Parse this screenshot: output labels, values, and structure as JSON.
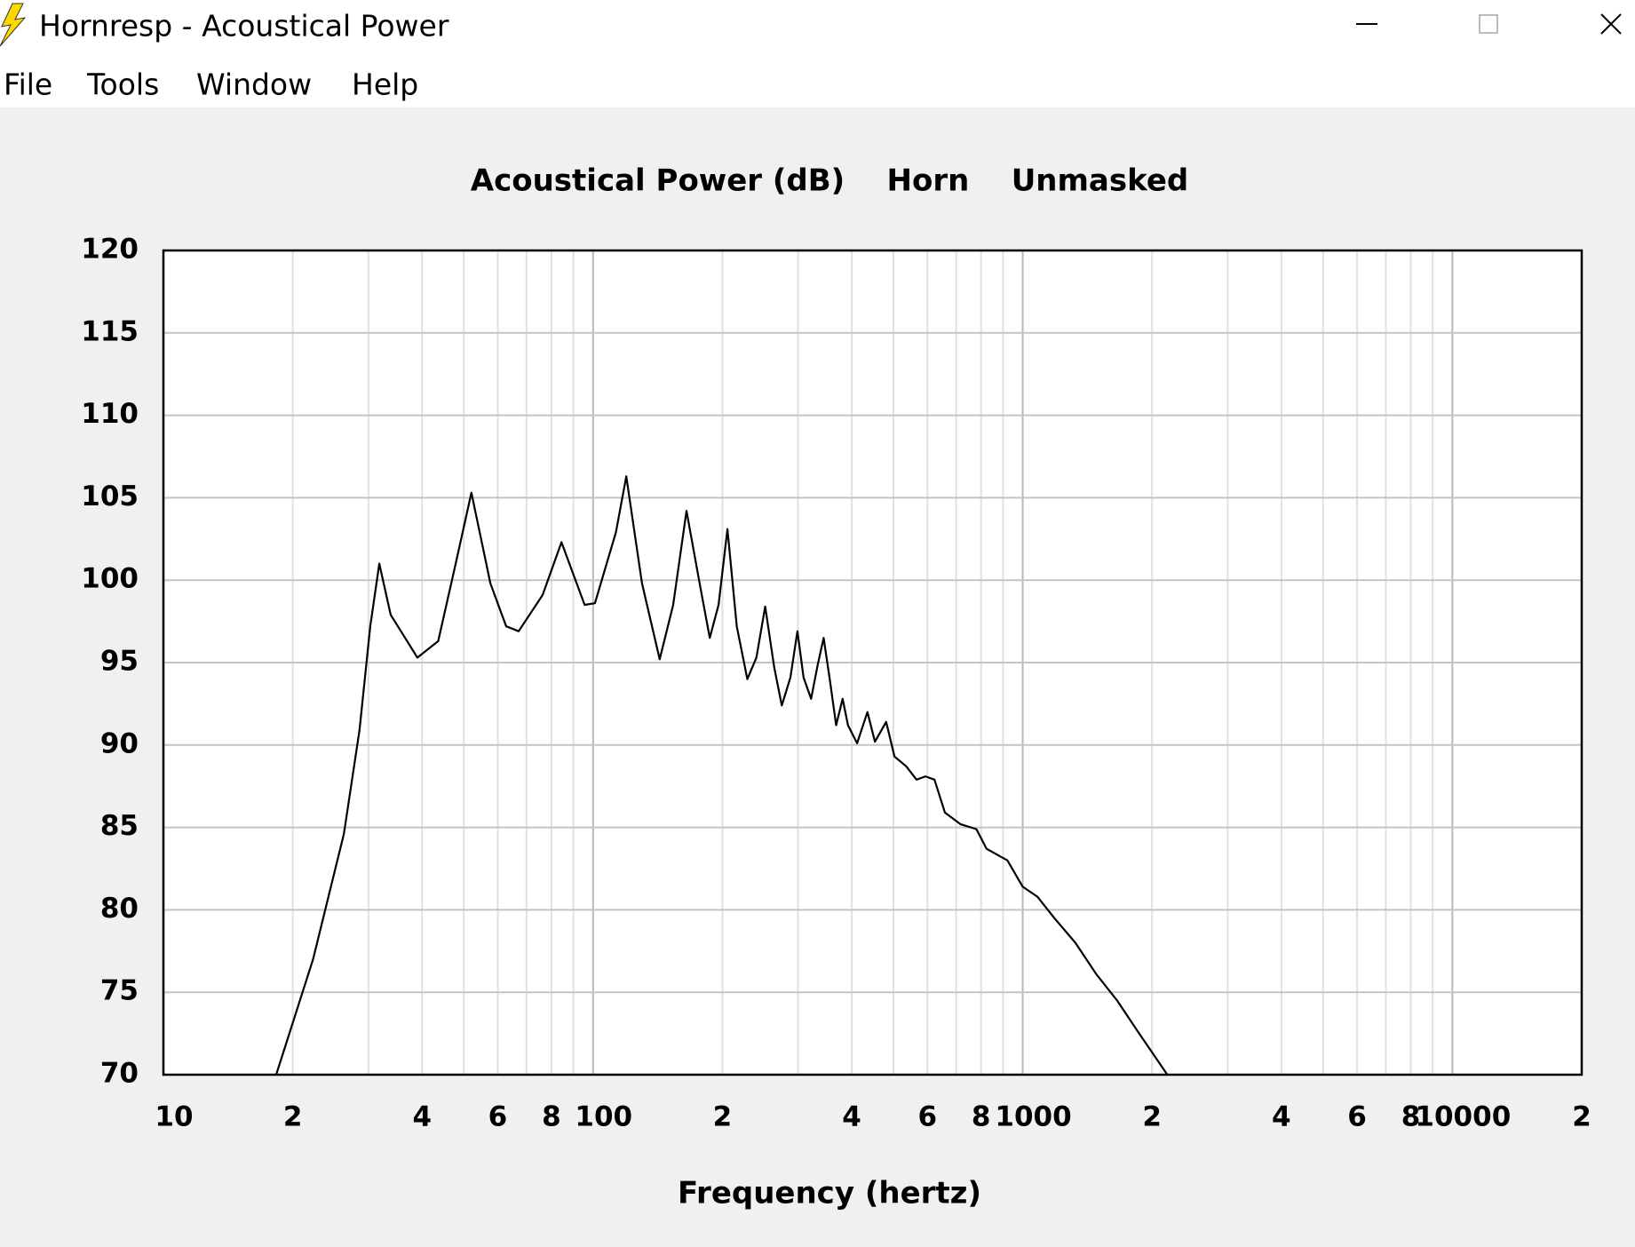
{
  "window": {
    "title": "Hornresp - Acoustical Power",
    "menu": [
      "File",
      "Tools",
      "Window",
      "Help"
    ]
  },
  "chart_data": {
    "type": "line",
    "title": "Acoustical Power (dB)    Horn    Unmasked",
    "x_label": "Frequency (hertz)",
    "log_x": true,
    "color": "#000000",
    "grid": true,
    "xlim": [
      10,
      20000
    ],
    "ylim": [
      70,
      120
    ],
    "xticks": [
      10,
      {
        "value": 20,
        "label": "2"
      },
      {
        "value": 40,
        "label": "4"
      },
      {
        "value": 60,
        "label": "6"
      },
      {
        "value": 80,
        "label": "8"
      },
      100,
      {
        "value": 200,
        "label": "2"
      },
      {
        "value": 400,
        "label": "4"
      },
      {
        "value": 600,
        "label": "6"
      },
      {
        "value": 800,
        "label": "8"
      },
      1000,
      {
        "value": 2000,
        "label": "2"
      },
      {
        "value": 4000,
        "label": "4"
      },
      {
        "value": 6000,
        "label": "6"
      },
      {
        "value": 8000,
        "label": "8"
      },
      10000,
      {
        "value": 20000,
        "label": "2"
      }
    ],
    "xgrid": [
      20,
      30,
      40,
      50,
      60,
      70,
      80,
      90,
      100,
      200,
      300,
      400,
      500,
      600,
      700,
      800,
      900,
      1000,
      2000,
      3000,
      4000,
      5000,
      6000,
      7000,
      8000,
      9000,
      10000
    ],
    "xgrid_major": [
      100,
      1000,
      10000
    ],
    "yticks": [
      70,
      75,
      80,
      85,
      90,
      95,
      100,
      105,
      110,
      115,
      120
    ],
    "x": [
      18.3,
      22.3,
      26.3,
      28.6,
      30.3,
      31.8,
      33.8,
      39.0,
      43.6,
      47.9,
      52.1,
      57.7,
      62.8,
      67.1,
      76.3,
      84.4,
      95.6,
      101,
      113,
      119.5,
      130,
      142.9,
      153.6,
      165,
      177,
      186.9,
      195.9,
      205.5,
      216,
      228.6,
      240,
      251.5,
      264,
      275,
      288,
      299,
      309,
      321.7,
      333,
      344,
      355,
      368,
      381,
      392,
      411.6,
      435,
      453,
      481,
      503,
      536,
      566,
      594,
      623,
      659,
      716,
      780,
      824,
      921,
      1000,
      1082,
      1185,
      1326,
      1483,
      1659,
      1855,
      2171
    ],
    "values": [
      70,
      77.0,
      84.6,
      90.9,
      97.2,
      101.0,
      97.9,
      95.3,
      96.3,
      101.0,
      105.3,
      99.8,
      97.2,
      96.9,
      99.1,
      102.3,
      98.5,
      98.6,
      102.9,
      106.3,
      99.8,
      95.2,
      98.5,
      104.2,
      99.8,
      96.5,
      98.5,
      103.1,
      97.2,
      94.0,
      95.3,
      98.4,
      94.7,
      92.4,
      94.1,
      96.9,
      94.1,
      92.8,
      94.8,
      96.5,
      94.1,
      91.2,
      92.8,
      91.2,
      90.1,
      92.0,
      90.2,
      91.4,
      89.3,
      88.7,
      87.9,
      88.1,
      87.9,
      85.9,
      85.2,
      84.9,
      83.7,
      83.0,
      81.4,
      80.8,
      79.5,
      78.0,
      76.1,
      74.5,
      72.6,
      70
    ]
  }
}
